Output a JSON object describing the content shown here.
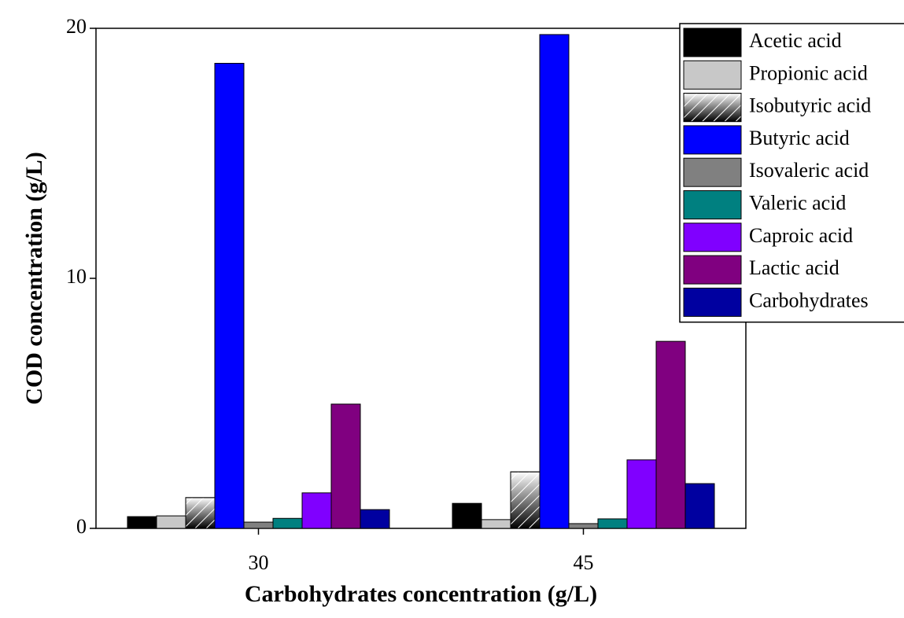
{
  "chart_data": {
    "type": "bar",
    "x_label": "Carbohydrates concentration (g/L)",
    "y_label": "COD concentration (g/L)",
    "categories": [
      "30",
      "45"
    ],
    "ylim": [
      0,
      20
    ],
    "yticks": [
      0,
      10,
      20
    ],
    "legend": "top-right",
    "series": [
      {
        "name": "Acetic acid",
        "color": "#000000",
        "values": [
          0.47,
          1.0
        ]
      },
      {
        "name": "Propionic acid",
        "color": "#c8c8c8",
        "values": [
          0.5,
          0.35
        ]
      },
      {
        "name": "Isobutyric acid",
        "color": "#555555",
        "hatch": true,
        "values": [
          1.23,
          2.26
        ]
      },
      {
        "name": "Butyric acid",
        "color": "#0000ff",
        "values": [
          18.6,
          19.75
        ]
      },
      {
        "name": "Isovaleric acid",
        "color": "#808080",
        "values": [
          0.25,
          0.19
        ]
      },
      {
        "name": "Valeric acid",
        "color": "#008080",
        "values": [
          0.4,
          0.38
        ]
      },
      {
        "name": "Caproic acid",
        "color": "#8000ff",
        "values": [
          1.42,
          2.74
        ]
      },
      {
        "name": "Lactic acid",
        "color": "#800080",
        "values": [
          4.97,
          7.48
        ]
      },
      {
        "name": "Carbohydrates",
        "color": "#0000a0",
        "values": [
          0.75,
          1.79
        ]
      }
    ]
  }
}
